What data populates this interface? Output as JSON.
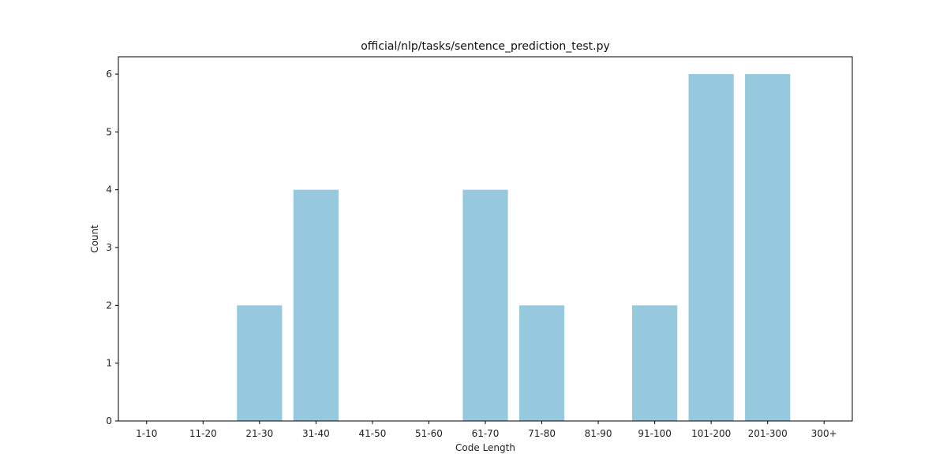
{
  "chart_data": {
    "type": "bar",
    "title": "official/nlp/tasks/sentence_prediction_test.py",
    "xlabel": "Code Length",
    "ylabel": "Count",
    "categories": [
      "1-10",
      "11-20",
      "21-30",
      "31-40",
      "41-50",
      "51-60",
      "61-70",
      "71-80",
      "81-90",
      "91-100",
      "101-200",
      "201-300",
      "300+"
    ],
    "values": [
      0,
      0,
      2,
      4,
      0,
      0,
      4,
      2,
      0,
      2,
      6,
      6,
      0
    ],
    "ylim": [
      0,
      6.3
    ],
    "yticks": [
      0,
      1,
      2,
      3,
      4,
      5,
      6
    ],
    "bar_color": "#96c9dd",
    "grid": false,
    "legend": false
  }
}
